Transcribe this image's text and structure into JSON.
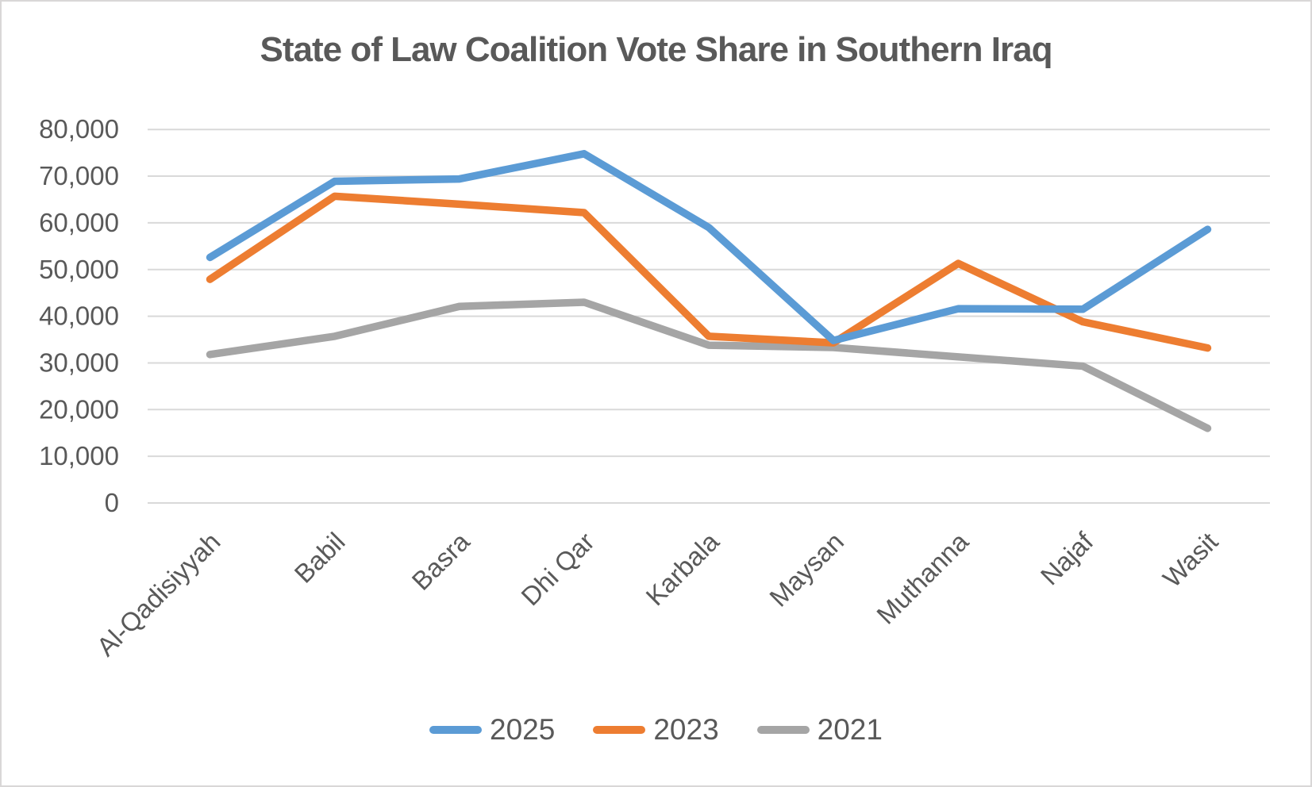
{
  "chart_data": {
    "type": "line",
    "title": "State of Law Coalition Vote Share in Southern Iraq",
    "categories": [
      "Al-Qadisiyyah",
      "Babil",
      "Basra",
      "Dhi Qar",
      "Karbala",
      "Maysan",
      "Muthanna",
      "Najaf",
      "Wasit"
    ],
    "series": [
      {
        "name": "2025",
        "color": "#5B9BD5",
        "values": [
          52600,
          68900,
          69400,
          74800,
          59000,
          34800,
          41600,
          41500,
          58600
        ]
      },
      {
        "name": "2023",
        "color": "#ED7D31",
        "values": [
          47900,
          65700,
          64000,
          62200,
          35700,
          34300,
          51300,
          38800,
          33200
        ]
      },
      {
        "name": "2021",
        "color": "#A5A5A5",
        "values": [
          31800,
          35700,
          42100,
          43000,
          33800,
          33300,
          31300,
          29300,
          16000
        ]
      }
    ],
    "xlabel": "",
    "ylabel": "",
    "ylim": [
      0,
      80000
    ],
    "ytick_step": 10000,
    "ytick_labels": [
      "0",
      "10,000",
      "20,000",
      "30,000",
      "40,000",
      "50,000",
      "60,000",
      "70,000",
      "80,000"
    ],
    "grid": true,
    "legend_position": "bottom"
  },
  "style": {
    "text_color": "#595959",
    "gridline_color": "#D9D9D9",
    "background": "#FFFFFF",
    "border_color": "#D9D7D7"
  }
}
